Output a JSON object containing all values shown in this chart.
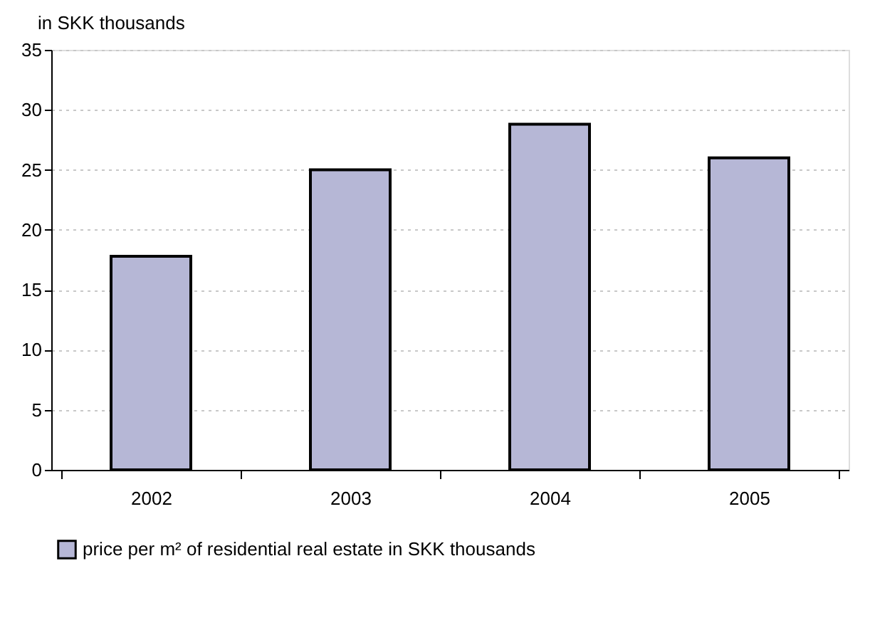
{
  "chart_data": {
    "type": "bar",
    "ylabel": "in SKK thousands",
    "categories": [
      "2002",
      "2003",
      "2004",
      "2005"
    ],
    "series": [
      {
        "name": "price per m² of residential real estate in SKK thousands",
        "color": "#b6b7d6",
        "values": [
          17.8,
          25.0,
          28.8,
          26.0
        ]
      }
    ],
    "ylim": [
      0,
      35
    ],
    "yticks": [
      0,
      5,
      10,
      15,
      20,
      25,
      30,
      35
    ],
    "grid": "y",
    "legend": "bottom"
  }
}
